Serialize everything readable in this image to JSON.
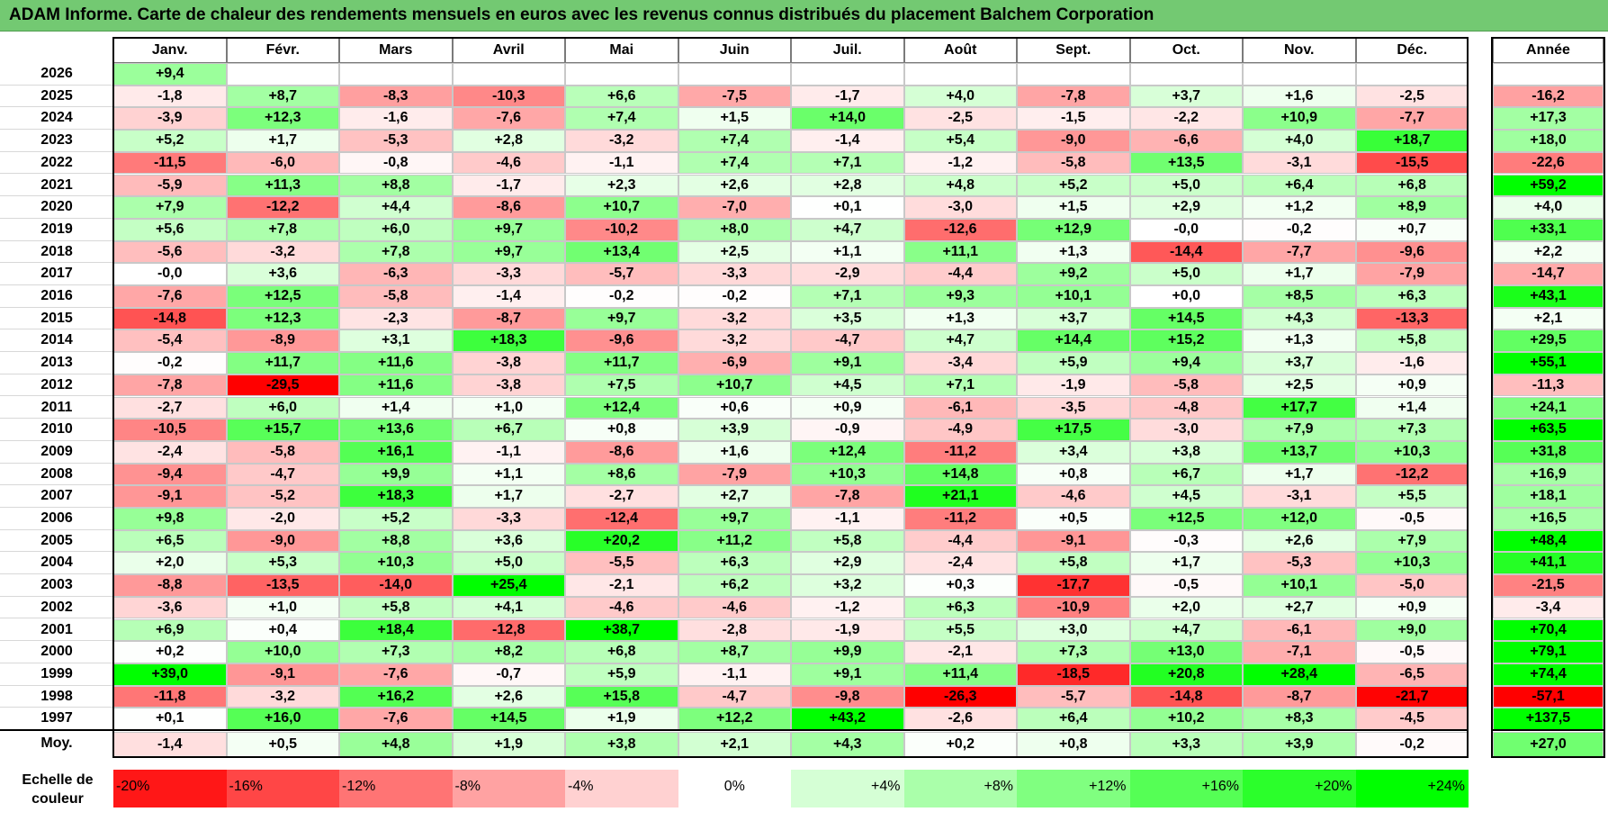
{
  "title": "ADAM Informe. Carte de chaleur des rendements mensuels en euros avec les revenus connus distribués du placement Balchem Corporation",
  "chart_data": {
    "type": "heatmap",
    "title": "ADAM Informe. Carte de chaleur des rendements mensuels en euros avec les revenus connus distribués du placement Balchem Corporation",
    "months": [
      "Janv.",
      "Févr.",
      "Mars",
      "Avril",
      "Mai",
      "Juin",
      "Juil.",
      "Août",
      "Sept.",
      "Oct.",
      "Nov.",
      "Déc."
    ],
    "year_header": "Année",
    "rows": [
      {
        "year": "2026",
        "values": [
          "+9,4",
          "",
          "",
          "",
          "",
          "",
          "",
          "",
          "",
          "",
          "",
          ""
        ],
        "annual": ""
      },
      {
        "year": "2025",
        "values": [
          "-1,8",
          "+8,7",
          "-8,3",
          "-10,3",
          "+6,6",
          "-7,5",
          "-1,7",
          "+4,0",
          "-7,8",
          "+3,7",
          "+1,6",
          "-2,5"
        ],
        "annual": "-16,2"
      },
      {
        "year": "2024",
        "values": [
          "-3,9",
          "+12,3",
          "-1,6",
          "-7,6",
          "+7,4",
          "+1,5",
          "+14,0",
          "-2,5",
          "-1,5",
          "-2,2",
          "+10,9",
          "-7,7"
        ],
        "annual": "+17,3"
      },
      {
        "year": "2023",
        "values": [
          "+5,2",
          "+1,7",
          "-5,3",
          "+2,8",
          "-3,2",
          "+7,4",
          "-1,4",
          "+5,4",
          "-9,0",
          "-6,6",
          "+4,0",
          "+18,7"
        ],
        "annual": "+18,0"
      },
      {
        "year": "2022",
        "values": [
          "-11,5",
          "-6,0",
          "-0,8",
          "-4,6",
          "-1,1",
          "+7,4",
          "+7,1",
          "-1,2",
          "-5,8",
          "+13,5",
          "-3,1",
          "-15,5"
        ],
        "annual": "-22,6"
      },
      {
        "year": "2021",
        "values": [
          "-5,9",
          "+11,3",
          "+8,8",
          "-1,7",
          "+2,3",
          "+2,6",
          "+2,8",
          "+4,8",
          "+5,2",
          "+5,0",
          "+6,4",
          "+6,8"
        ],
        "annual": "+59,2"
      },
      {
        "year": "2020",
        "values": [
          "+7,9",
          "-12,2",
          "+4,4",
          "-8,6",
          "+10,7",
          "-7,0",
          "+0,1",
          "-3,0",
          "+1,5",
          "+2,9",
          "+1,2",
          "+8,9"
        ],
        "annual": "+4,0"
      },
      {
        "year": "2019",
        "values": [
          "+5,6",
          "+7,8",
          "+6,0",
          "+9,7",
          "-10,2",
          "+8,0",
          "+4,7",
          "-12,6",
          "+12,9",
          "-0,0",
          "-0,2",
          "+0,7"
        ],
        "annual": "+33,1"
      },
      {
        "year": "2018",
        "values": [
          "-5,6",
          "-3,2",
          "+7,8",
          "+9,7",
          "+13,4",
          "+2,5",
          "+1,1",
          "+11,1",
          "+1,3",
          "-14,4",
          "-7,7",
          "-9,6"
        ],
        "annual": "+2,2"
      },
      {
        "year": "2017",
        "values": [
          "-0,0",
          "+3,6",
          "-6,3",
          "-3,3",
          "-5,7",
          "-3,3",
          "-2,9",
          "-4,4",
          "+9,2",
          "+5,0",
          "+1,7",
          "-7,9"
        ],
        "annual": "-14,7"
      },
      {
        "year": "2016",
        "values": [
          "-7,6",
          "+12,5",
          "-5,8",
          "-1,4",
          "-0,2",
          "-0,2",
          "+7,1",
          "+9,3",
          "+10,1",
          "+0,0",
          "+8,5",
          "+6,3"
        ],
        "annual": "+43,1"
      },
      {
        "year": "2015",
        "values": [
          "-14,8",
          "+12,3",
          "-2,3",
          "-8,7",
          "+9,7",
          "-3,2",
          "+3,5",
          "+1,3",
          "+3,7",
          "+14,5",
          "+4,3",
          "-13,3"
        ],
        "annual": "+2,1"
      },
      {
        "year": "2014",
        "values": [
          "-5,4",
          "-8,9",
          "+3,1",
          "+18,3",
          "-9,6",
          "-3,2",
          "-4,7",
          "+4,7",
          "+14,4",
          "+15,2",
          "+1,3",
          "+5,8"
        ],
        "annual": "+29,5"
      },
      {
        "year": "2013",
        "values": [
          "-0,2",
          "+11,7",
          "+11,6",
          "-3,8",
          "+11,7",
          "-6,9",
          "+9,1",
          "-3,4",
          "+5,9",
          "+9,4",
          "+3,7",
          "-1,6"
        ],
        "annual": "+55,1"
      },
      {
        "year": "2012",
        "values": [
          "-7,8",
          "-29,5",
          "+11,6",
          "-3,8",
          "+7,5",
          "+10,7",
          "+4,5",
          "+7,1",
          "-1,9",
          "-5,8",
          "+2,5",
          "+0,9"
        ],
        "annual": "-11,3"
      },
      {
        "year": "2011",
        "values": [
          "-2,7",
          "+6,0",
          "+1,4",
          "+1,0",
          "+12,4",
          "+0,6",
          "+0,9",
          "-6,1",
          "-3,5",
          "-4,8",
          "+17,7",
          "+1,4"
        ],
        "annual": "+24,1"
      },
      {
        "year": "2010",
        "values": [
          "-10,5",
          "+15,7",
          "+13,6",
          "+6,7",
          "+0,8",
          "+3,9",
          "-0,9",
          "-4,9",
          "+17,5",
          "-3,0",
          "+7,9",
          "+7,3"
        ],
        "annual": "+63,5"
      },
      {
        "year": "2009",
        "values": [
          "-2,4",
          "-5,8",
          "+16,1",
          "-1,1",
          "-8,6",
          "+1,6",
          "+12,4",
          "-11,2",
          "+3,4",
          "+3,8",
          "+13,7",
          "+10,3"
        ],
        "annual": "+31,8"
      },
      {
        "year": "2008",
        "values": [
          "-9,4",
          "-4,7",
          "+9,9",
          "+1,1",
          "+8,6",
          "-7,9",
          "+10,3",
          "+14,8",
          "+0,8",
          "+6,7",
          "+1,7",
          "-12,2"
        ],
        "annual": "+16,9"
      },
      {
        "year": "2007",
        "values": [
          "-9,1",
          "-5,2",
          "+18,3",
          "+1,7",
          "-2,7",
          "+2,7",
          "-7,8",
          "+21,1",
          "-4,6",
          "+4,5",
          "-3,1",
          "+5,5"
        ],
        "annual": "+18,1"
      },
      {
        "year": "2006",
        "values": [
          "+9,8",
          "-2,0",
          "+5,2",
          "-3,3",
          "-12,4",
          "+9,7",
          "-1,1",
          "-11,2",
          "+0,5",
          "+12,5",
          "+12,0",
          "-0,5"
        ],
        "annual": "+16,5"
      },
      {
        "year": "2005",
        "values": [
          "+6,5",
          "-9,0",
          "+8,8",
          "+3,6",
          "+20,2",
          "+11,2",
          "+5,8",
          "-4,4",
          "-9,1",
          "-0,3",
          "+2,6",
          "+7,9"
        ],
        "annual": "+48,4"
      },
      {
        "year": "2004",
        "values": [
          "+2,0",
          "+5,3",
          "+10,3",
          "+5,0",
          "-5,5",
          "+6,3",
          "+2,9",
          "-2,4",
          "+5,8",
          "+1,7",
          "-5,3",
          "+10,3"
        ],
        "annual": "+41,1"
      },
      {
        "year": "2003",
        "values": [
          "-8,8",
          "-13,5",
          "-14,0",
          "+25,4",
          "-2,1",
          "+6,2",
          "+3,2",
          "+0,3",
          "-17,7",
          "-0,5",
          "+10,1",
          "-5,0"
        ],
        "annual": "-21,5"
      },
      {
        "year": "2002",
        "values": [
          "-3,6",
          "+1,0",
          "+5,8",
          "+4,1",
          "-4,6",
          "-4,6",
          "-1,2",
          "+6,3",
          "-10,9",
          "+2,0",
          "+2,7",
          "+0,9"
        ],
        "annual": "-3,4"
      },
      {
        "year": "2001",
        "values": [
          "+6,9",
          "+0,4",
          "+18,4",
          "-12,8",
          "+38,7",
          "-2,8",
          "-1,9",
          "+5,5",
          "+3,0",
          "+4,7",
          "-6,1",
          "+9,0"
        ],
        "annual": "+70,4"
      },
      {
        "year": "2000",
        "values": [
          "+0,2",
          "+10,0",
          "+7,3",
          "+8,2",
          "+6,8",
          "+8,7",
          "+9,9",
          "-2,1",
          "+7,3",
          "+13,0",
          "-7,1",
          "-0,5"
        ],
        "annual": "+79,1"
      },
      {
        "year": "1999",
        "values": [
          "+39,0",
          "-9,1",
          "-7,6",
          "-0,7",
          "+5,9",
          "-1,1",
          "+9,1",
          "+11,4",
          "-18,5",
          "+20,8",
          "+28,4",
          "-6,5"
        ],
        "annual": "+74,4"
      },
      {
        "year": "1998",
        "values": [
          "-11,8",
          "-3,2",
          "+16,2",
          "+2,6",
          "+15,8",
          "-4,7",
          "-9,8",
          "-26,3",
          "-5,7",
          "-14,8",
          "-8,7",
          "-21,7"
        ],
        "annual": "-57,1"
      },
      {
        "year": "1997",
        "values": [
          "+0,1",
          "+16,0",
          "-7,6",
          "+14,5",
          "+1,9",
          "+12,2",
          "+43,2",
          "-2,6",
          "+6,4",
          "+10,2",
          "+8,3",
          "-4,5"
        ],
        "annual": "+137,5"
      }
    ],
    "average": {
      "label": "Moy.",
      "values": [
        "-1,4",
        "+0,5",
        "+4,8",
        "+1,9",
        "+3,8",
        "+2,1",
        "+4,3",
        "+0,2",
        "+0,8",
        "+3,3",
        "+3,9",
        "-0,2"
      ],
      "annual": "+27,0"
    },
    "color_scale": {
      "label": "Echelle de couleur",
      "stops": [
        "-20%",
        "-16%",
        "-12%",
        "-8%",
        "-4%",
        "0%",
        "+4%",
        "+8%",
        "+12%",
        "+16%",
        "+20%",
        "+24%"
      ],
      "stop_values": [
        -20,
        -16,
        -12,
        -8,
        -4,
        0,
        4,
        8,
        12,
        16,
        20,
        24
      ]
    },
    "colors": {
      "negative_max": "#ff0000",
      "neutral": "#ffffff",
      "positive_max": "#00ff00",
      "title_bar": "#73c972"
    }
  }
}
